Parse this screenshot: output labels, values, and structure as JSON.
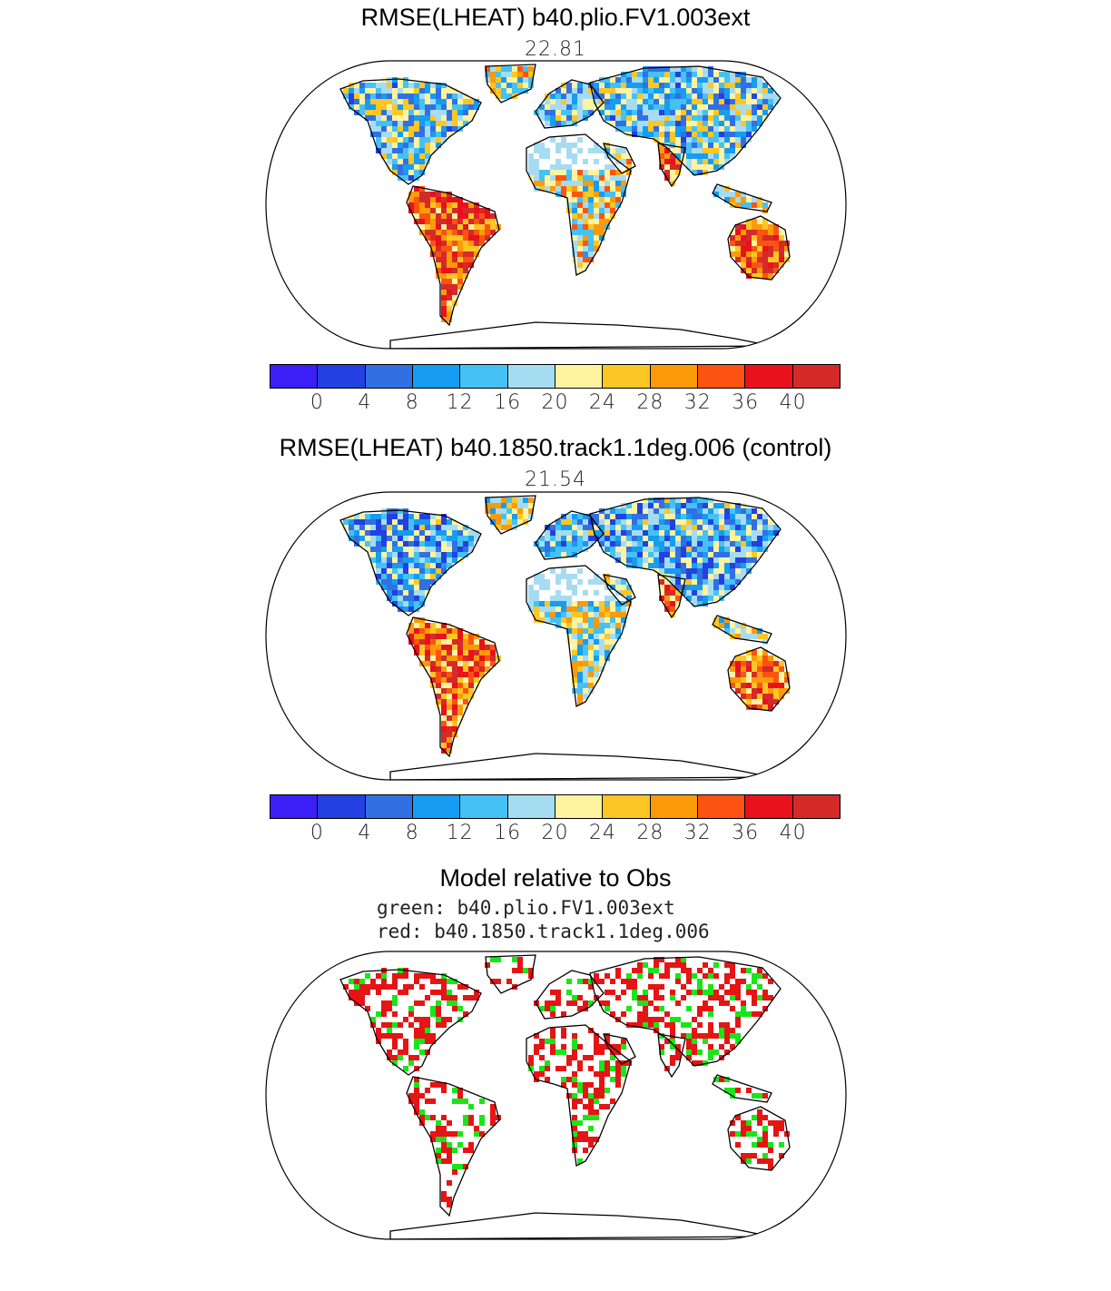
{
  "panels": [
    {
      "title": "RMSE(LHEAT) b40.plio.FV1.003ext",
      "value": "22.81",
      "avg_error_class": 0.55
    },
    {
      "title": "RMSE(LHEAT) b40.1850.track1.1deg.006 (control)",
      "value": "21.54",
      "avg_error_class": 0.5
    }
  ],
  "colorbar": {
    "colors": [
      "#3b1ff7",
      "#2341e0",
      "#3170e3",
      "#169cf0",
      "#45c1f5",
      "#a6dcf2",
      "#fff3a0",
      "#fcc624",
      "#fc9a09",
      "#fc5410",
      "#e8111c",
      "#d52a2a"
    ],
    "labels": [
      "0",
      "4",
      "8",
      "12",
      "16",
      "20",
      "24",
      "28",
      "32",
      "36",
      "40"
    ]
  },
  "comparison": {
    "title": "Model relative to Obs",
    "green_label": "green: b40.plio.FV1.003ext",
    "red_label": "red: b40.1850.track1.1deg.006",
    "green_color": "#19e619",
    "red_color": "#e61414"
  }
}
